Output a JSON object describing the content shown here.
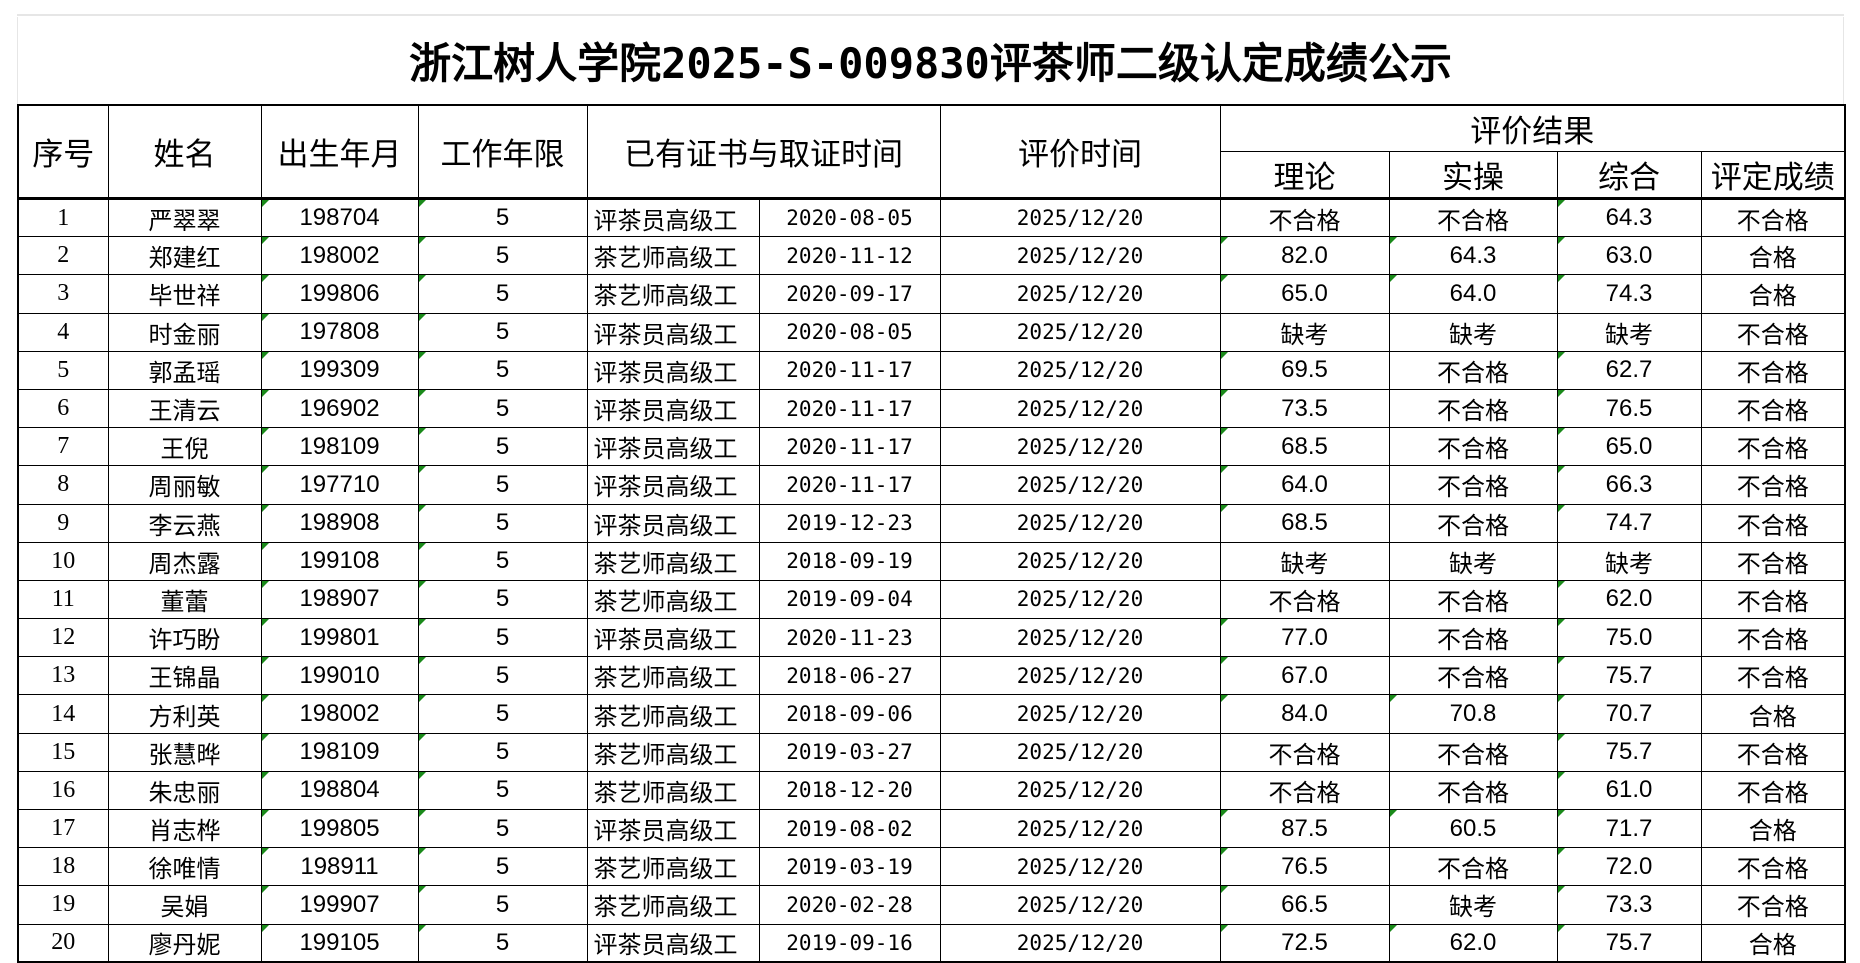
{
  "title": "浙江树人学院2025-S-009830评茶师二级认定成绩公示",
  "headers": {
    "seq": "序号",
    "name": "姓名",
    "birth": "出生年月",
    "years": "工作年限",
    "cert": "已有证书与取证时间",
    "eval_time": "评价时间",
    "result_group": "评价结果",
    "theory": "理论",
    "practice": "实操",
    "overall": "综合",
    "final": "评定成绩"
  },
  "rows": [
    {
      "seq": "1",
      "name": "严翠翠",
      "birth": "198704",
      "years": "5",
      "cert": "评茶员高级工",
      "cert_date": "2020-08-05",
      "eval_time": "2025/12/20",
      "theory": "不合格",
      "practice": "不合格",
      "overall": "64.3",
      "final": "不合格"
    },
    {
      "seq": "2",
      "name": "郑建红",
      "birth": "198002",
      "years": "5",
      "cert": "茶艺师高级工",
      "cert_date": "2020-11-12",
      "eval_time": "2025/12/20",
      "theory": "82.0",
      "practice": "64.3",
      "overall": "63.0",
      "final": "合格"
    },
    {
      "seq": "3",
      "name": "毕世祥",
      "birth": "199806",
      "years": "5",
      "cert": "茶艺师高级工",
      "cert_date": "2020-09-17",
      "eval_time": "2025/12/20",
      "theory": "65.0",
      "practice": "64.0",
      "overall": "74.3",
      "final": "合格"
    },
    {
      "seq": "4",
      "name": "时金丽",
      "birth": "197808",
      "years": "5",
      "cert": "评茶员高级工",
      "cert_date": "2020-08-05",
      "eval_time": "2025/12/20",
      "theory": "缺考",
      "practice": "缺考",
      "overall": "缺考",
      "final": "不合格"
    },
    {
      "seq": "5",
      "name": "郭孟瑶",
      "birth": "199309",
      "years": "5",
      "cert": "评茶员高级工",
      "cert_date": "2020-11-17",
      "eval_time": "2025/12/20",
      "theory": "69.5",
      "practice": "不合格",
      "overall": "62.7",
      "final": "不合格"
    },
    {
      "seq": "6",
      "name": "王清云",
      "birth": "196902",
      "years": "5",
      "cert": "评茶员高级工",
      "cert_date": "2020-11-17",
      "eval_time": "2025/12/20",
      "theory": "73.5",
      "practice": "不合格",
      "overall": "76.5",
      "final": "不合格"
    },
    {
      "seq": "7",
      "name": "王倪",
      "birth": "198109",
      "years": "5",
      "cert": "评茶员高级工",
      "cert_date": "2020-11-17",
      "eval_time": "2025/12/20",
      "theory": "68.5",
      "practice": "不合格",
      "overall": "65.0",
      "final": "不合格"
    },
    {
      "seq": "8",
      "name": "周丽敏",
      "birth": "197710",
      "years": "5",
      "cert": "评茶员高级工",
      "cert_date": "2020-11-17",
      "eval_time": "2025/12/20",
      "theory": "64.0",
      "practice": "不合格",
      "overall": "66.3",
      "final": "不合格"
    },
    {
      "seq": "9",
      "name": "李云燕",
      "birth": "198908",
      "years": "5",
      "cert": "评茶员高级工",
      "cert_date": "2019-12-23",
      "eval_time": "2025/12/20",
      "theory": "68.5",
      "practice": "不合格",
      "overall": "74.7",
      "final": "不合格"
    },
    {
      "seq": "10",
      "name": "周杰露",
      "birth": "199108",
      "years": "5",
      "cert": "茶艺师高级工",
      "cert_date": "2018-09-19",
      "eval_time": "2025/12/20",
      "theory": "缺考",
      "practice": "缺考",
      "overall": "缺考",
      "final": "不合格"
    },
    {
      "seq": "11",
      "name": "董蕾",
      "birth": "198907",
      "years": "5",
      "cert": "茶艺师高级工",
      "cert_date": "2019-09-04",
      "eval_time": "2025/12/20",
      "theory": "不合格",
      "practice": "不合格",
      "overall": "62.0",
      "final": "不合格"
    },
    {
      "seq": "12",
      "name": "许巧盼",
      "birth": "199801",
      "years": "5",
      "cert": "评茶员高级工",
      "cert_date": "2020-11-23",
      "eval_time": "2025/12/20",
      "theory": "77.0",
      "practice": "不合格",
      "overall": "75.0",
      "final": "不合格"
    },
    {
      "seq": "13",
      "name": "王锦晶",
      "birth": "199010",
      "years": "5",
      "cert": "茶艺师高级工",
      "cert_date": "2018-06-27",
      "eval_time": "2025/12/20",
      "theory": "67.0",
      "practice": "不合格",
      "overall": "75.7",
      "final": "不合格"
    },
    {
      "seq": "14",
      "name": "方利英",
      "birth": "198002",
      "years": "5",
      "cert": "茶艺师高级工",
      "cert_date": "2018-09-06",
      "eval_time": "2025/12/20",
      "theory": "84.0",
      "practice": "70.8",
      "overall": "70.7",
      "final": "合格"
    },
    {
      "seq": "15",
      "name": "张慧晔",
      "birth": "198109",
      "years": "5",
      "cert": "茶艺师高级工",
      "cert_date": "2019-03-27",
      "eval_time": "2025/12/20",
      "theory": "不合格",
      "practice": "不合格",
      "overall": "75.7",
      "final": "不合格"
    },
    {
      "seq": "16",
      "name": "朱忠丽",
      "birth": "198804",
      "years": "5",
      "cert": "茶艺师高级工",
      "cert_date": "2018-12-20",
      "eval_time": "2025/12/20",
      "theory": "不合格",
      "practice": "不合格",
      "overall": "61.0",
      "final": "不合格"
    },
    {
      "seq": "17",
      "name": "肖志桦",
      "birth": "199805",
      "years": "5",
      "cert": "评茶员高级工",
      "cert_date": "2019-08-02",
      "eval_time": "2025/12/20",
      "theory": "87.5",
      "practice": "60.5",
      "overall": "71.7",
      "final": "合格"
    },
    {
      "seq": "18",
      "name": "徐唯情",
      "birth": "198911",
      "years": "5",
      "cert": "茶艺师高级工",
      "cert_date": "2019-03-19",
      "eval_time": "2025/12/20",
      "theory": "76.5",
      "practice": "不合格",
      "overall": "72.0",
      "final": "不合格"
    },
    {
      "seq": "19",
      "name": "吴娟",
      "birth": "199907",
      "years": "5",
      "cert": "茶艺师高级工",
      "cert_date": "2020-02-28",
      "eval_time": "2025/12/20",
      "theory": "66.5",
      "practice": "缺考",
      "overall": "73.3",
      "final": "不合格"
    },
    {
      "seq": "20",
      "name": "廖丹妮",
      "birth": "199105",
      "years": "5",
      "cert": "评茶员高级工",
      "cert_date": "2019-09-16",
      "eval_time": "2025/12/20",
      "theory": "72.5",
      "practice": "62.0",
      "overall": "75.7",
      "final": "合格"
    }
  ],
  "colors": {
    "border": "#000000",
    "error_indicator": "#1a8a1a"
  }
}
